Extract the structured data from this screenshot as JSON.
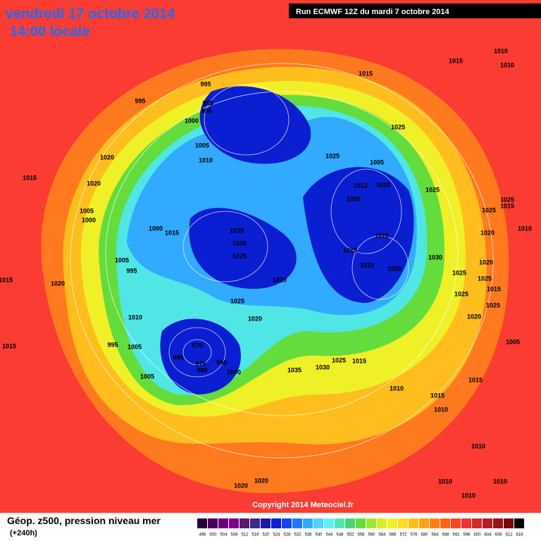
{
  "header": {
    "title": "vendredi 17 octobre 2014",
    "subtitle": "14:00 locale",
    "run": "Run ECMWF 12Z du mardi 7 octobre 2014"
  },
  "pressure_labels": [
    995,
    995,
    985,
    990,
    1000,
    1005,
    1010,
    1015,
    1015,
    1010,
    1010,
    1025,
    1025,
    1005,
    1013,
    1020,
    1005,
    1025,
    1020,
    1020,
    1015,
    1005,
    1000,
    1000,
    1015,
    1035,
    1030,
    1025,
    1015,
    1015,
    1010,
    1005,
    1030,
    1020,
    1025,
    1020,
    1005,
    995,
    1010,
    1020,
    1015,
    1015,
    995,
    1005,
    970,
    985,
    975,
    980,
    990,
    1000,
    1005,
    1035,
    1030,
    1025,
    1015,
    1010,
    1015,
    1010,
    1015,
    1005,
    1020,
    1025,
    1015,
    1025,
    1020,
    1025,
    1025,
    1010,
    1020,
    1025,
    1025,
    1015,
    1010,
    1010,
    1010,
    1010,
    1020,
    1020
  ],
  "copyright": "Copyright 2014 Meteociel.fr",
  "footer": {
    "title": "Géop. z500, pression niveau mer",
    "lead": "(+240h)"
  },
  "legend": {
    "values": [
      496,
      500,
      504,
      508,
      512,
      516,
      520,
      524,
      528,
      532,
      536,
      540,
      544,
      548,
      552,
      556,
      560,
      564,
      568,
      572,
      576,
      580,
      584,
      588,
      592,
      596,
      600,
      604,
      608,
      612,
      616
    ],
    "colors": [
      "#2a0038",
      "#48005a",
      "#6a0078",
      "#80008a",
      "#5a1a6a",
      "#3a2a8a",
      "#1a1aa8",
      "#0a1ed2",
      "#1446f0",
      "#1e78ff",
      "#32aaff",
      "#50d2ff",
      "#64f0f0",
      "#50e6b4",
      "#4ad278",
      "#64dc3c",
      "#a0e632",
      "#d2f028",
      "#f0f028",
      "#ffdc1e",
      "#ffbe14",
      "#ffa014",
      "#ff8214",
      "#ff6414",
      "#ff461e",
      "#f03232",
      "#d22828",
      "#b41e1e",
      "#961414",
      "#780a0a",
      "#000000"
    ]
  }
}
